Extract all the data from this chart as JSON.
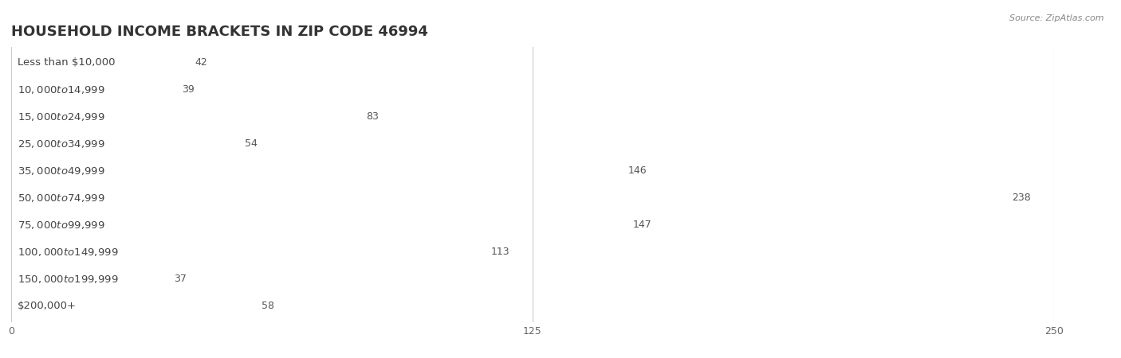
{
  "title": "HOUSEHOLD INCOME BRACKETS IN ZIP CODE 46994",
  "source": "Source: ZipAtlas.com",
  "categories": [
    "Less than $10,000",
    "$10,000 to $14,999",
    "$15,000 to $24,999",
    "$25,000 to $34,999",
    "$35,000 to $49,999",
    "$50,000 to $74,999",
    "$75,000 to $99,999",
    "$100,000 to $149,999",
    "$150,000 to $199,999",
    "$200,000+"
  ],
  "values": [
    42,
    39,
    83,
    54,
    146,
    238,
    147,
    113,
    37,
    58
  ],
  "bar_colors": [
    "#F5C897",
    "#F4A0A8",
    "#A8C4E8",
    "#C8AACC",
    "#6ECFC8",
    "#9090D8",
    "#F47FAA",
    "#F5C897",
    "#F4A0A8",
    "#A8C4E8"
  ],
  "xlim_max": 250,
  "xticks": [
    0,
    125,
    250
  ],
  "bg_color": "#ffffff",
  "bar_bg_color": "#e8e8e8",
  "title_fontsize": 13,
  "label_fontsize": 9.5,
  "value_fontsize": 9
}
